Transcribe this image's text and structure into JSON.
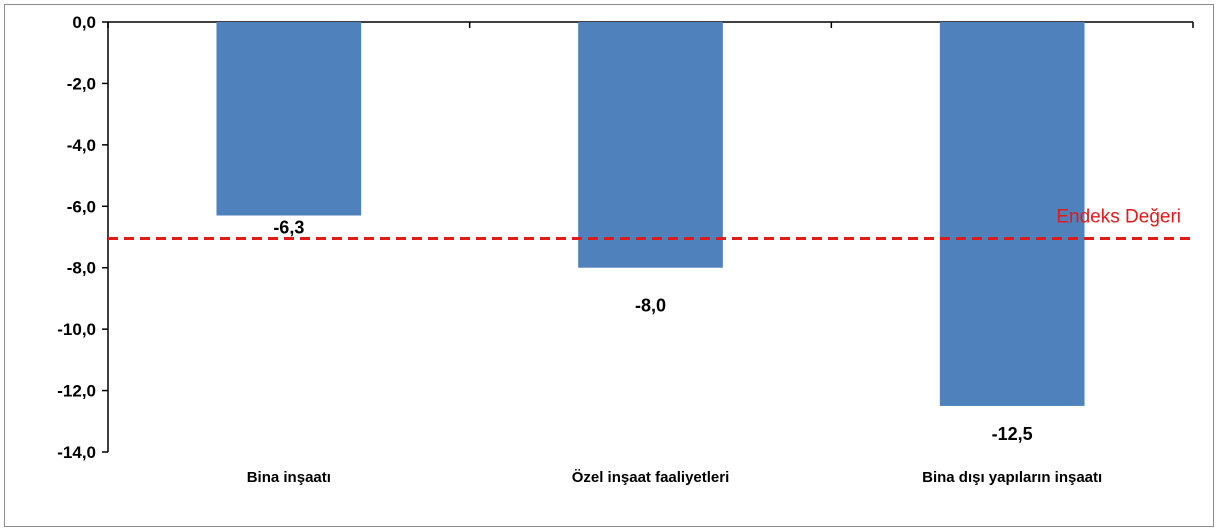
{
  "chart_data": {
    "type": "bar",
    "title": "",
    "xlabel": "",
    "ylabel": "",
    "categories": [
      "Bina inşaatı",
      "Özel inşaat faaliyetleri",
      "Bina dışı yapıların inşaatı"
    ],
    "values": [
      -6.3,
      -8.0,
      -12.5
    ],
    "data_labels": [
      "-6,3",
      "-8,0",
      "-12,5"
    ],
    "ylim": [
      -14,
      0
    ],
    "yticks": [
      0,
      -2,
      -4,
      -6,
      -8,
      -10,
      -12,
      -14
    ],
    "ytick_labels": [
      "0,0",
      "-2,0",
      "-4,0",
      "-6,0",
      "-8,0",
      "-10,0",
      "-12,0",
      "-14,0"
    ],
    "grid": false,
    "legend": "none",
    "bar_color": "#4f81bd",
    "reference_line": {
      "label": "Endeks Değeri",
      "value": -7.05,
      "color": "#e31a1c",
      "style": "dashed"
    }
  }
}
